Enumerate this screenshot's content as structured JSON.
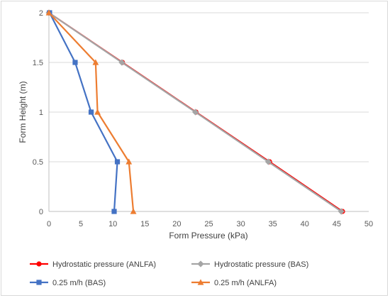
{
  "chart_data": {
    "type": "line",
    "title": "",
    "xlabel": "Form Pressure (kPa)",
    "ylabel": "Form Height (m)",
    "xlim": [
      0,
      50
    ],
    "ylim": [
      0,
      2
    ],
    "xticks": [
      0,
      5,
      10,
      15,
      20,
      25,
      30,
      35,
      40,
      45,
      50
    ],
    "yticks": [
      0,
      0.5,
      1,
      1.5,
      2
    ],
    "grid": "horizontal",
    "legend_position": "bottom",
    "series": [
      {
        "name": "Hydrostatic pressure (ANLFA)",
        "color": "#ff0000",
        "marker": "circle",
        "points": [
          [
            0,
            2
          ],
          [
            11.5,
            1.5
          ],
          [
            23,
            1
          ],
          [
            34.5,
            0.5
          ],
          [
            45.9,
            0
          ]
        ]
      },
      {
        "name": "Hydrostatic pressure (BAS)",
        "color": "#a5a5a5",
        "marker": "diamond",
        "points": [
          [
            0,
            2
          ],
          [
            11.4,
            1.5
          ],
          [
            22.9,
            1
          ],
          [
            34.3,
            0.5
          ],
          [
            45.7,
            0
          ]
        ]
      },
      {
        "name": "0.25 m/h (BAS)",
        "color": "#4472c4",
        "marker": "square",
        "points": [
          [
            0.1,
            2
          ],
          [
            4.1,
            1.5
          ],
          [
            6.6,
            1
          ],
          [
            10.7,
            0.5
          ],
          [
            10.2,
            0
          ]
        ]
      },
      {
        "name": "0.25 m/h (ANLFA)",
        "color": "#ed7d31",
        "marker": "triangle",
        "points": [
          [
            0,
            2
          ],
          [
            7.3,
            1.5
          ],
          [
            7.6,
            1
          ],
          [
            12.5,
            0.5
          ],
          [
            13.2,
            0
          ]
        ]
      }
    ]
  }
}
